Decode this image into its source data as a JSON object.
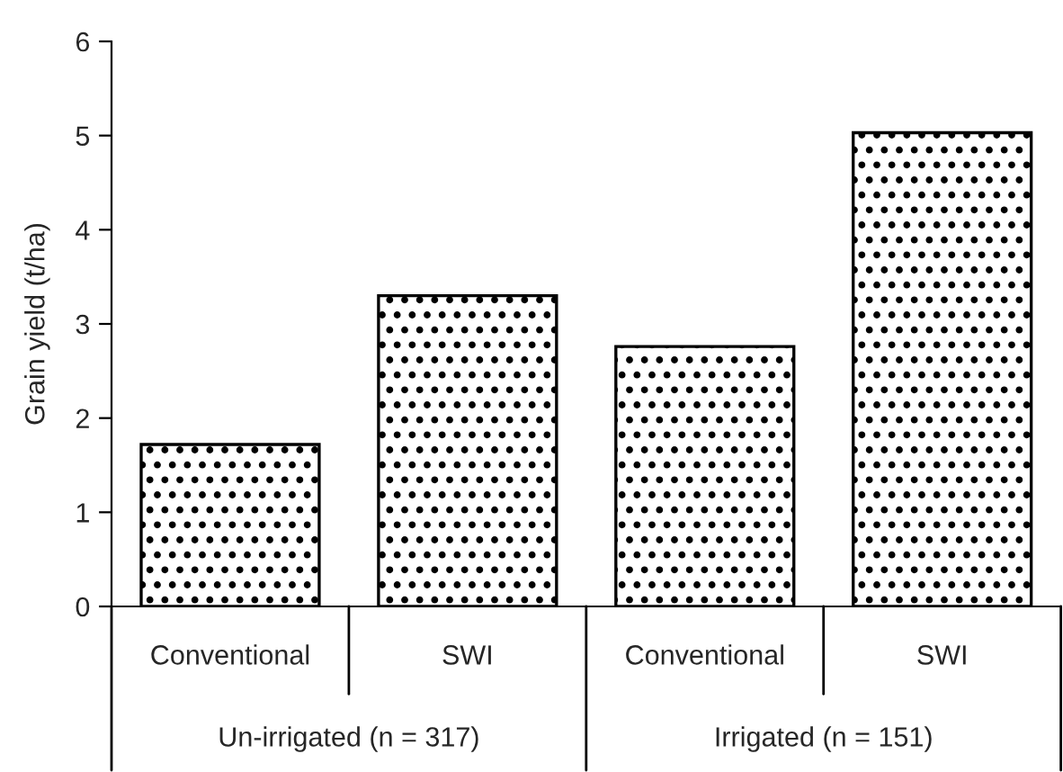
{
  "chart_data": {
    "type": "bar",
    "ylabel": "Grain yield (t/ha)",
    "categories": [
      "Conventional",
      "SWI",
      "Conventional",
      "SWI"
    ],
    "values": [
      1.72,
      3.3,
      2.76,
      5.03
    ],
    "color": "#000000",
    "ylim": [
      0,
      6
    ],
    "yticks": [
      0,
      1,
      2,
      3,
      4,
      5,
      6
    ],
    "grid": false,
    "legend": false,
    "annotations": [
      "Un-irrigated (n = 317)",
      "Irrigated (n = 151)"
    ]
  }
}
